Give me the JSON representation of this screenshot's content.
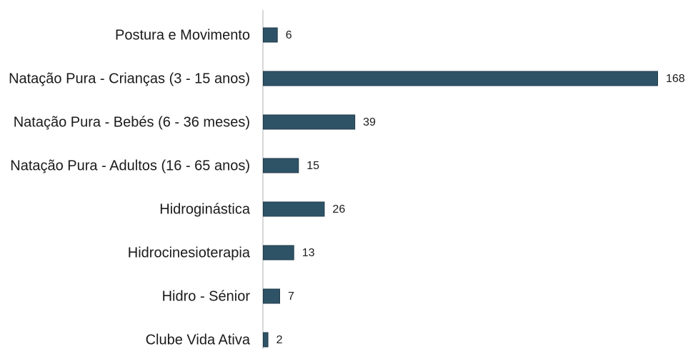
{
  "chart_data": {
    "type": "hbar",
    "categories": [
      "Postura e Movimento",
      "Natação Pura - Crianças (3 - 15 anos)",
      "Natação Pura - Bebés (6 - 36 meses)",
      "Natação Pura - Adultos (16 - 65 anos)",
      "Hidroginástica",
      "Hidrocinesioterapia",
      "Hidro - Sénior",
      "Clube Vida Ativa"
    ],
    "values": [
      6,
      168,
      39,
      15,
      26,
      13,
      7,
      2
    ],
    "color": "#2f5366"
  }
}
